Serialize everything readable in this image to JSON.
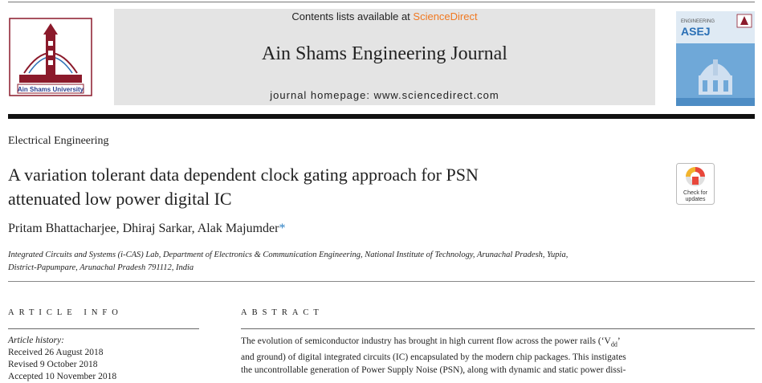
{
  "header": {
    "contents_prefix": "Contents lists available at ",
    "publisher": "ScienceDirect",
    "journal_title": "Ain Shams Engineering Journal",
    "homepage": "journal homepage: www.sciencedirect.com",
    "logo_text": "Ain Shams University",
    "cover_journal": "ENGINEERING",
    "cover_abbrev": "ASEJ"
  },
  "article": {
    "section": "Electrical Engineering",
    "title_line1": "A variation tolerant data dependent clock gating approach for PSN",
    "title_line2": "attenuated low power digital IC",
    "authors": "Pritam Bhattacharjee, Dhiraj Sarkar, Alak Majumder",
    "author_mark": "*",
    "affiliation_line1": "Integrated Circuits and Systems (i-CAS) Lab, Department of Electronics & Communication Engineering, National Institute of Technology, Arunachal Pradesh, Yupia,",
    "affiliation_line2": "District-Papumpare, Arunachal Pradesh 791112, India",
    "check_updates_line1": "Check for",
    "check_updates_line2": "updates"
  },
  "article_info": {
    "heading": "ARTICLE INFO",
    "history_label": "Article history:",
    "received": "Received 26 August 2018",
    "revised": "Revised 9 October 2018",
    "accepted": "Accepted 10 November 2018"
  },
  "abstract": {
    "heading": "ABSTRACT",
    "line1_a": "The evolution of semiconductor industry has brought in high current flow across the power rails (‘V",
    "line1_sub": "dd",
    "line1_b": "’",
    "line2": "and ground) of digital integrated circuits (IC) encapsulated by the modern chip packages. This instigates",
    "line3": "the uncontrollable generation of Power Supply Noise (PSN), along with dynamic and static power dissi-"
  },
  "colors": {
    "sciencedirect_orange": "#f07820",
    "author_mark_blue": "#2b7fc3",
    "banner_grey": "#e4e4e4",
    "cover_blue": "#6fa8d8",
    "logo_maroon": "#8b1a2b"
  },
  "icons": [
    "university-logo-icon",
    "journal-cover-icon",
    "check-for-updates-icon"
  ]
}
